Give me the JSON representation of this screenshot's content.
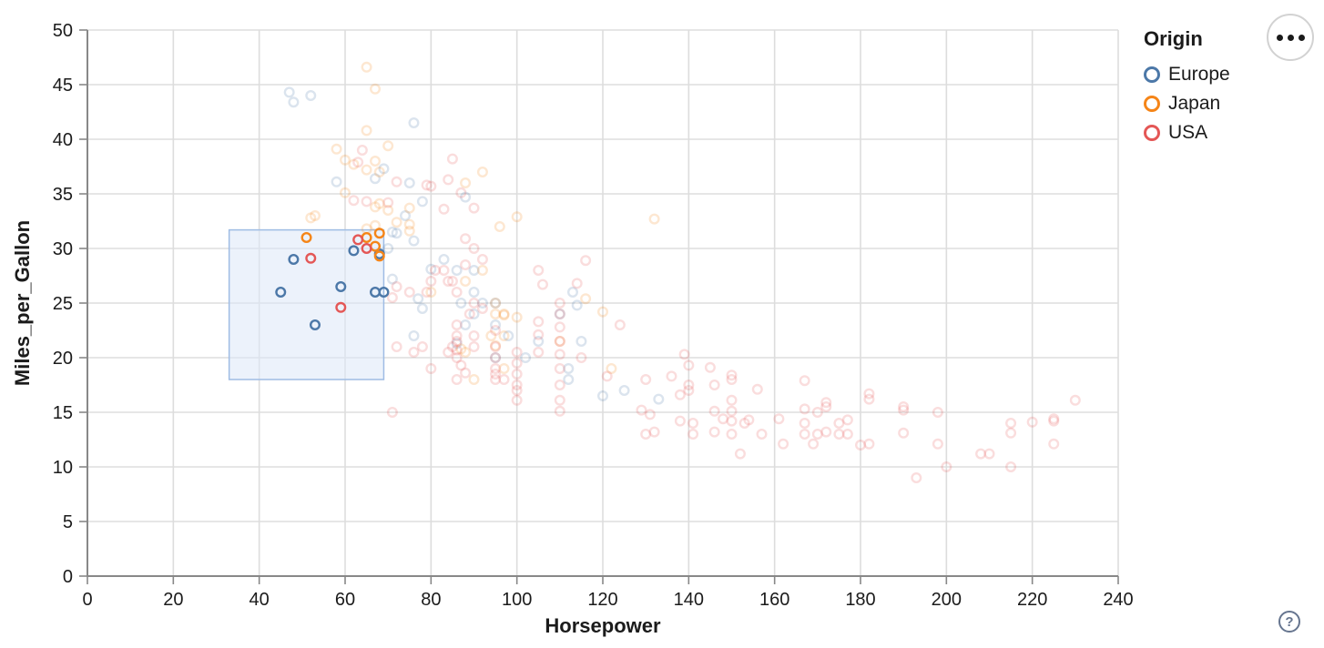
{
  "legend": {
    "title": "Origin",
    "items": [
      {
        "label": "Europe",
        "color": "#4c78a8"
      },
      {
        "label": "Japan",
        "color": "#f58518"
      },
      {
        "label": "USA",
        "color": "#e45756"
      }
    ]
  },
  "actions_menu": {
    "icon": "ellipsis-icon"
  },
  "help_button": {
    "label": "?"
  },
  "chart_data": {
    "type": "scatter",
    "title": "",
    "xlabel": "Horsepower",
    "ylabel": "Miles_per_Gallon",
    "xlim": [
      0,
      240
    ],
    "ylim": [
      0,
      50
    ],
    "xticks": [
      0,
      20,
      40,
      60,
      80,
      100,
      120,
      140,
      160,
      180,
      200,
      220,
      240
    ],
    "yticks": [
      0,
      5,
      10,
      15,
      20,
      25,
      30,
      35,
      40,
      45,
      50
    ],
    "grid": true,
    "legend_position": "right",
    "point_shape": "hollow-circle",
    "faded_opacity": 0.2,
    "brush_selection": {
      "x": [
        33,
        69
      ],
      "y": [
        18,
        31.7
      ],
      "fill": "#dce8f8",
      "stroke": "#9fbce4"
    },
    "series": [
      {
        "name": "Europe",
        "color": "#4c78a8",
        "selected_points": [
          [
            45,
            26
          ],
          [
            48,
            29
          ],
          [
            53,
            23
          ],
          [
            59,
            26.5
          ],
          [
            62,
            29.8
          ],
          [
            67,
            26
          ],
          [
            68,
            29.5
          ],
          [
            69,
            26
          ]
        ],
        "points": [
          [
            47,
            44.3
          ],
          [
            48,
            43.4
          ],
          [
            52,
            44
          ],
          [
            76,
            41.5
          ],
          [
            69,
            37.3
          ],
          [
            67,
            36.4
          ],
          [
            58,
            36.1
          ],
          [
            75,
            36
          ],
          [
            78,
            34.3
          ],
          [
            74,
            33
          ],
          [
            88,
            34.7
          ],
          [
            71,
            31.5
          ],
          [
            72,
            31.4
          ],
          [
            76,
            30.7
          ],
          [
            70,
            30
          ],
          [
            80,
            28.1
          ],
          [
            83,
            29
          ],
          [
            86,
            28
          ],
          [
            90,
            28
          ],
          [
            87,
            25
          ],
          [
            90,
            24
          ],
          [
            95,
            25
          ],
          [
            88,
            23
          ],
          [
            90,
            26
          ],
          [
            95,
            23
          ],
          [
            98,
            22
          ],
          [
            102,
            20
          ],
          [
            95,
            20
          ],
          [
            110,
            24
          ],
          [
            115,
            21.5
          ],
          [
            105,
            21.5
          ],
          [
            113,
            26
          ],
          [
            114,
            24.8
          ],
          [
            112,
            18
          ],
          [
            112,
            19
          ],
          [
            125,
            17
          ],
          [
            120,
            16.5
          ],
          [
            133,
            16.2
          ],
          [
            77,
            25.4
          ],
          [
            78,
            24.5
          ],
          [
            92,
            25
          ],
          [
            71,
            27.2
          ],
          [
            76,
            22
          ],
          [
            86,
            21.3
          ]
        ]
      },
      {
        "name": "Japan",
        "color": "#f58518",
        "selected_points": [
          [
            51,
            31
          ],
          [
            65,
            31
          ],
          [
            67,
            30.2
          ],
          [
            68,
            31.4
          ],
          [
            68,
            29.3
          ]
        ],
        "points": [
          [
            65,
            46.6
          ],
          [
            67,
            44.6
          ],
          [
            65,
            40.8
          ],
          [
            70,
            39.4
          ],
          [
            58,
            39.1
          ],
          [
            60,
            38.1
          ],
          [
            62,
            37.7
          ],
          [
            68,
            37
          ],
          [
            67,
            38
          ],
          [
            65,
            37.2
          ],
          [
            60,
            35.1
          ],
          [
            68,
            34.1
          ],
          [
            75,
            33.7
          ],
          [
            53,
            33
          ],
          [
            52,
            32.8
          ],
          [
            70,
            33.5
          ],
          [
            67,
            33.8
          ],
          [
            75,
            32.2
          ],
          [
            72,
            32.4
          ],
          [
            75,
            31.6
          ],
          [
            65,
            31.8
          ],
          [
            67,
            32.1
          ],
          [
            96,
            32
          ],
          [
            100,
            32.9
          ],
          [
            92,
            37
          ],
          [
            88,
            36
          ],
          [
            132,
            32.7
          ],
          [
            88,
            27
          ],
          [
            92,
            28
          ],
          [
            95,
            24
          ],
          [
            95,
            25
          ],
          [
            97,
            24
          ],
          [
            94,
            22
          ],
          [
            88,
            20.5
          ],
          [
            97,
            19
          ],
          [
            90,
            18
          ],
          [
            110,
            21.5
          ],
          [
            122,
            19
          ],
          [
            95,
            21.1
          ],
          [
            97,
            22
          ],
          [
            100,
            23.7
          ],
          [
            116,
            25.4
          ],
          [
            120,
            24.2
          ],
          [
            97,
            23.9
          ],
          [
            80,
            26
          ],
          [
            87,
            20.8
          ]
        ]
      },
      {
        "name": "USA",
        "color": "#e45756",
        "selected_points": [
          [
            52,
            29.1
          ],
          [
            59,
            24.6
          ],
          [
            63,
            30.8
          ],
          [
            65,
            30
          ]
        ],
        "points": [
          [
            64,
            39
          ],
          [
            63,
            37.9
          ],
          [
            85,
            38.2
          ],
          [
            80,
            35.7
          ],
          [
            84,
            36.3
          ],
          [
            83,
            33.6
          ],
          [
            90,
            33.7
          ],
          [
            87,
            35.1
          ],
          [
            72,
            36.1
          ],
          [
            79,
            35.8
          ],
          [
            62,
            34.4
          ],
          [
            70,
            34.2
          ],
          [
            65,
            34.3
          ],
          [
            88,
            30.9
          ],
          [
            90,
            30
          ],
          [
            92,
            29
          ],
          [
            88,
            28.5
          ],
          [
            85,
            27
          ],
          [
            81,
            28
          ],
          [
            86,
            26
          ],
          [
            79,
            26
          ],
          [
            75,
            26
          ],
          [
            72,
            26.5
          ],
          [
            80,
            27
          ],
          [
            83,
            28
          ],
          [
            84,
            27
          ],
          [
            89,
            24
          ],
          [
            92,
            24.5
          ],
          [
            71,
            25.5
          ],
          [
            86,
            23
          ],
          [
            86,
            22
          ],
          [
            86,
            21.5
          ],
          [
            86,
            20.7
          ],
          [
            86,
            20
          ],
          [
            87,
            19.3
          ],
          [
            88,
            18.6
          ],
          [
            86,
            18
          ],
          [
            90,
            21
          ],
          [
            90,
            22
          ],
          [
            95,
            22.5
          ],
          [
            95,
            21
          ],
          [
            95,
            20
          ],
          [
            95,
            19
          ],
          [
            95,
            18.5
          ],
          [
            95,
            18
          ],
          [
            100,
            20.5
          ],
          [
            100,
            19.5
          ],
          [
            100,
            18.5
          ],
          [
            100,
            17.5
          ],
          [
            100,
            17
          ],
          [
            100,
            16.1
          ],
          [
            97,
            18
          ],
          [
            90,
            25
          ],
          [
            85,
            21
          ],
          [
            71,
            15
          ],
          [
            76,
            20.5
          ],
          [
            72,
            21
          ],
          [
            80,
            19
          ],
          [
            84,
            20.5
          ],
          [
            78,
            21
          ],
          [
            105,
            28
          ],
          [
            106,
            26.7
          ],
          [
            105,
            23.3
          ],
          [
            105,
            22.1
          ],
          [
            105,
            20.5
          ],
          [
            110,
            25
          ],
          [
            110,
            24
          ],
          [
            110,
            22.8
          ],
          [
            110,
            21.5
          ],
          [
            110,
            20.3
          ],
          [
            110,
            19
          ],
          [
            110,
            17.5
          ],
          [
            110,
            16.1
          ],
          [
            110,
            15.1
          ],
          [
            116,
            28.9
          ],
          [
            114,
            26.8
          ],
          [
            121,
            18.3
          ],
          [
            124,
            23
          ],
          [
            115,
            20
          ],
          [
            130,
            18
          ],
          [
            130,
            13
          ],
          [
            132,
            13.2
          ],
          [
            131,
            14.8
          ],
          [
            136,
            18.3
          ],
          [
            138,
            14.2
          ],
          [
            139,
            20.3
          ],
          [
            140,
            19.3
          ],
          [
            140,
            17.5
          ],
          [
            140,
            17
          ],
          [
            138,
            16.6
          ],
          [
            141,
            14
          ],
          [
            141,
            13
          ],
          [
            129,
            15.2
          ],
          [
            145,
            19.1
          ],
          [
            146,
            17.5
          ],
          [
            146,
            15.1
          ],
          [
            146,
            13.2
          ],
          [
            148,
            14.4
          ],
          [
            150,
            18.4
          ],
          [
            150,
            18
          ],
          [
            150,
            16.1
          ],
          [
            150,
            15.1
          ],
          [
            150,
            14.2
          ],
          [
            150,
            13
          ],
          [
            152,
            11.2
          ],
          [
            153,
            14
          ],
          [
            154,
            14.3
          ],
          [
            156,
            17.1
          ],
          [
            157,
            13
          ],
          [
            161,
            14.4
          ],
          [
            162,
            12.1
          ],
          [
            167,
            17.9
          ],
          [
            167,
            15.3
          ],
          [
            167,
            14
          ],
          [
            167,
            13
          ],
          [
            169,
            12.1
          ],
          [
            172,
            15.9
          ],
          [
            172,
            15.5
          ],
          [
            172,
            13.2
          ],
          [
            175,
            13
          ],
          [
            170,
            13
          ],
          [
            170,
            15
          ],
          [
            175,
            14
          ],
          [
            177,
            14.3
          ],
          [
            177,
            13
          ],
          [
            182,
            16.7
          ],
          [
            182,
            16.2
          ],
          [
            182,
            12.1
          ],
          [
            180,
            12
          ],
          [
            190,
            15.5
          ],
          [
            190,
            15.2
          ],
          [
            190,
            13.1
          ],
          [
            193,
            9
          ],
          [
            198,
            15
          ],
          [
            198,
            12.1
          ],
          [
            200,
            10
          ],
          [
            208,
            11.2
          ],
          [
            210,
            11.2
          ],
          [
            215,
            14
          ],
          [
            215,
            13.1
          ],
          [
            215,
            10
          ],
          [
            220,
            14.1
          ],
          [
            225,
            14.2
          ],
          [
            225,
            14.4
          ],
          [
            225,
            12.1
          ],
          [
            230,
            16.1
          ]
        ]
      }
    ]
  }
}
